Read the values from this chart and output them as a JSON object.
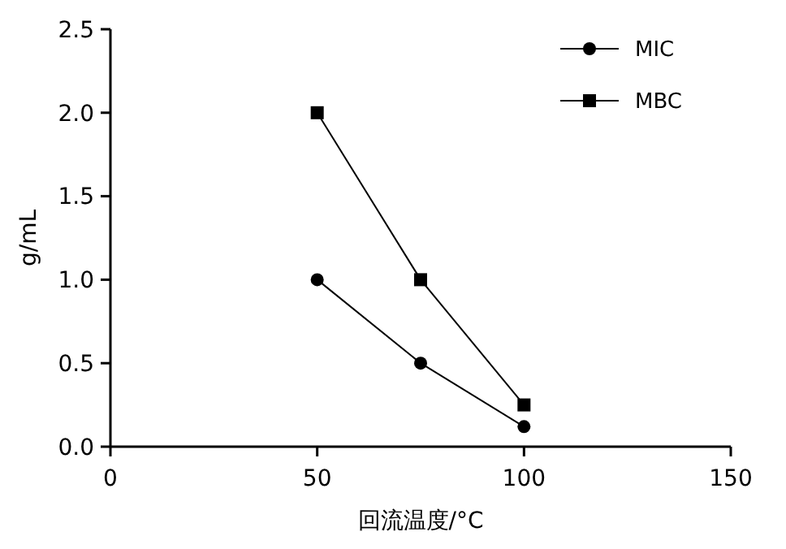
{
  "chart_data": {
    "type": "line",
    "xlabel": "回流温度/°C",
    "ylabel": "g/mL",
    "x": [
      50,
      75,
      100
    ],
    "series": [
      {
        "name": "MIC",
        "color": "#000000",
        "marker": "circle",
        "values": [
          1.0,
          0.5,
          0.12
        ]
      },
      {
        "name": "MBC",
        "color": "#000000",
        "marker": "square",
        "values": [
          2.0,
          1.0,
          0.25
        ]
      }
    ],
    "xlim": [
      0,
      150
    ],
    "xticks": [
      0,
      50,
      100,
      150
    ],
    "ylim": [
      0,
      2.5
    ],
    "yticks": [
      {
        "value": 0,
        "label": "0.0"
      },
      0.5,
      {
        "value": 1,
        "label": "1.0"
      },
      1.5,
      {
        "value": 2,
        "label": "2.0"
      },
      2.5
    ],
    "legend": "top right",
    "grid": false,
    "line_style": "solid"
  }
}
